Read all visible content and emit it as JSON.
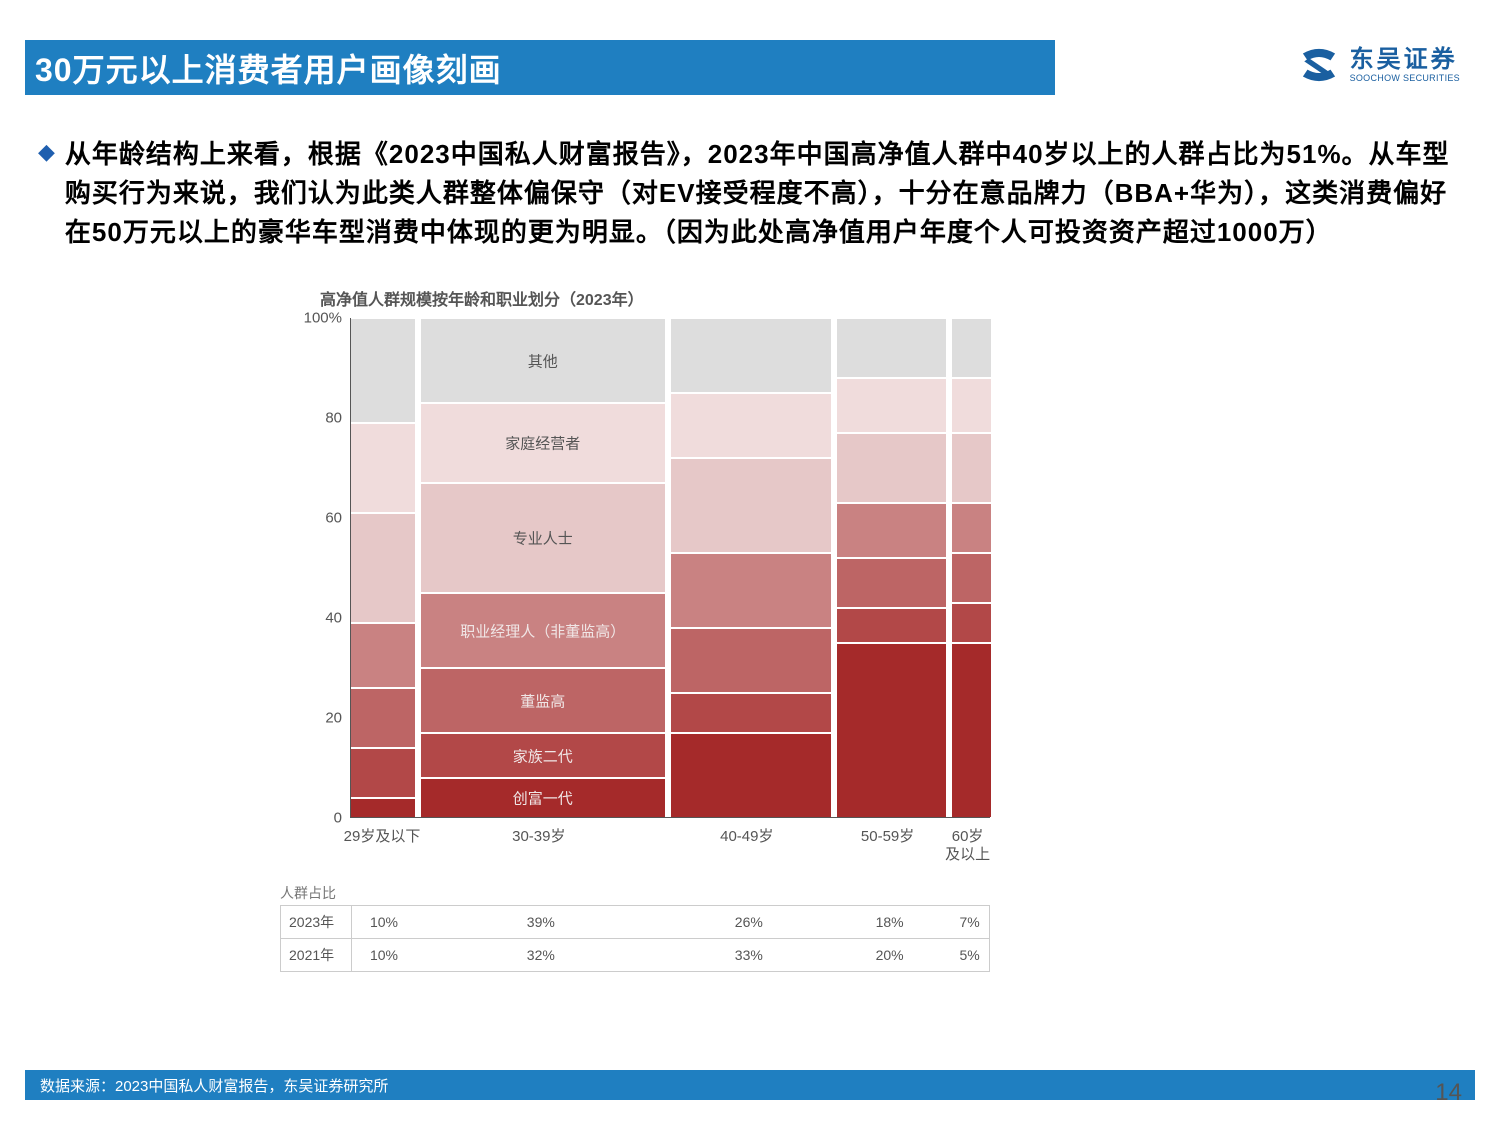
{
  "header": {
    "title": "30万元以上消费者用户画像刻画",
    "logo_cn": "东吴证券",
    "logo_en": "SOOCHOW SECURITIES"
  },
  "bullet": {
    "text": "从年龄结构上来看，根据《2023中国私人财富报告》，2023年中国高净值人群中40岁以上的人群占比为51%。从车型购买行为来说，我们认为此类人群整体偏保守（对EV接受程度不高），十分在意品牌力（BBA+华为），这类消费偏好在50万元以上的豪华车型消费中体现的更为明显。（因为此处高净值用户年度个人可投资资产超过1000万）"
  },
  "chart": {
    "title": "高净值人群规模按年龄和职业划分（2023年）",
    "type": "marimekko-stacked",
    "ylim": [
      0,
      100
    ],
    "yticks": [
      0,
      20,
      40,
      60,
      80,
      100
    ],
    "ylabel_suffix_top": "%",
    "categories": [
      "29岁及以下",
      "30-39岁",
      "40-49岁",
      "50-59岁",
      "60岁\n及以上"
    ],
    "widths_pct": [
      10,
      39,
      26,
      18,
      7
    ],
    "segments": [
      "创富一代",
      "家族二代",
      "董监高",
      "职业经理人（非董监高）",
      "专业人士",
      "家庭经营者",
      "其他"
    ],
    "segment_colors": [
      "#a52a2a",
      "#b24848",
      "#bd6565",
      "#c98282",
      "#e6c8c8",
      "#f0dcdc",
      "#dddddd"
    ],
    "label_text_colors": [
      "light",
      "light",
      "light",
      "light",
      "dark",
      "dark",
      "dark"
    ],
    "stacks": [
      [
        4,
        10,
        12,
        13,
        22,
        18,
        21
      ],
      [
        8,
        9,
        13,
        15,
        22,
        16,
        17
      ],
      [
        17,
        8,
        13,
        15,
        19,
        13,
        15
      ],
      [
        35,
        7,
        10,
        11,
        14,
        11,
        12
      ],
      [
        35,
        8,
        10,
        10,
        14,
        11,
        12
      ]
    ],
    "label_column_index": 1,
    "share_table": {
      "header": "人群占比",
      "rows": [
        {
          "year": "2023年",
          "values": [
            "10%",
            "39%",
            "26%",
            "18%",
            "7%"
          ]
        },
        {
          "year": "2021年",
          "values": [
            "10%",
            "32%",
            "33%",
            "20%",
            "5%"
          ]
        }
      ]
    }
  },
  "footer": {
    "source": "数据来源：2023中国私人财富报告，东吴证券研究所",
    "page": "14"
  },
  "colors": {
    "brand_blue": "#1f7fc1",
    "logo_blue": "#1a5fa0"
  }
}
